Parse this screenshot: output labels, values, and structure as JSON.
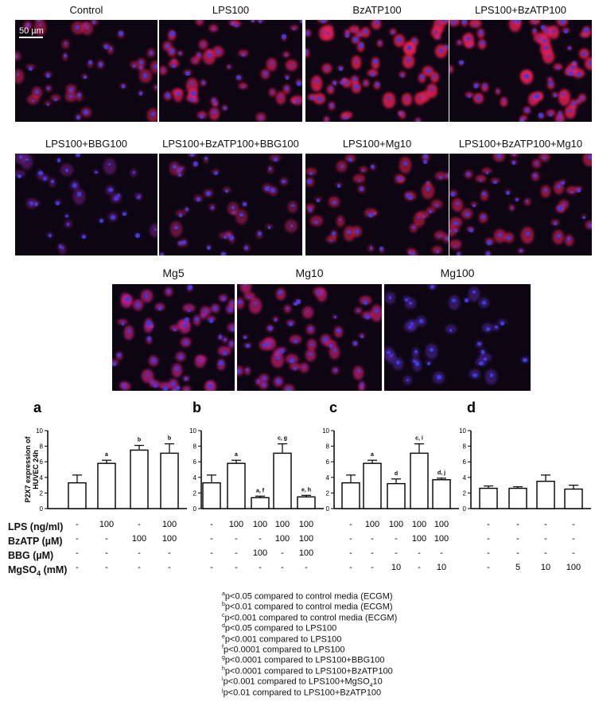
{
  "scale_bar": "50 µm",
  "micrographs": [
    {
      "label": "Control",
      "tint": "#d11f57",
      "density": 0.45
    },
    {
      "label": "LPS100",
      "tint": "#e01e5a",
      "density": 0.7
    },
    {
      "label": "BzATP100",
      "tint": "#e8204f",
      "density": 0.85
    },
    {
      "label": "LPS100+BzATP100",
      "tint": "#e81f56",
      "density": 0.85
    },
    {
      "label": "LPS100+BBG100",
      "tint": "#7a1f8a",
      "density": 0.35
    },
    {
      "label": "LPS100+BzATP100+BBG100",
      "tint": "#b0205e",
      "density": 0.4
    },
    {
      "label": "LPS100+Mg10",
      "tint": "#cc1e4a",
      "density": 0.55
    },
    {
      "label": "LPS100+BzATP100+Mg10",
      "tint": "#d01f55",
      "density": 0.6
    },
    {
      "label": "Mg5",
      "tint": "#c02081",
      "density": 0.7
    },
    {
      "label": "Mg10",
      "tint": "#c81e6d",
      "density": 0.65
    },
    {
      "label": "Mg100",
      "tint": "#5b2ab0",
      "density": 0.3
    }
  ],
  "chart_data": [
    {
      "type": "bar",
      "panel": "a",
      "ylabel": "P2X7 expression of HUVEC 24h",
      "ylim": [
        0,
        10
      ],
      "yticks": [
        "0",
        "2",
        "4",
        "6",
        "8",
        "10"
      ],
      "values": [
        3.3,
        5.8,
        7.5,
        7.1
      ],
      "errors": [
        1.0,
        0.4,
        0.6,
        1.2
      ],
      "sig": [
        "",
        "a",
        "b",
        "b"
      ],
      "conditions": {
        "lps": [
          "-",
          "100",
          "-",
          "100"
        ],
        "bzatp": [
          "-",
          "-",
          "100",
          "100"
        ],
        "bbg": [
          "-",
          "-",
          "-",
          "-"
        ],
        "mgso4": [
          "-",
          "-",
          "-",
          "-"
        ]
      }
    },
    {
      "type": "bar",
      "panel": "b",
      "ylim": [
        0,
        10
      ],
      "yticks": [
        "0",
        "2",
        "4",
        "6",
        "8",
        "10"
      ],
      "values": [
        3.3,
        5.8,
        1.4,
        7.1,
        1.5
      ],
      "errors": [
        1.0,
        0.4,
        0.2,
        1.2,
        0.2
      ],
      "sig": [
        "",
        "a",
        "a, f",
        "c, g",
        "e, h"
      ],
      "conditions": {
        "lps": [
          "-",
          "100",
          "100",
          "100",
          "100"
        ],
        "bzatp": [
          "-",
          "-",
          "-",
          "100",
          "100"
        ],
        "bbg": [
          "-",
          "-",
          "100",
          "-",
          "100"
        ],
        "mgso4": [
          "-",
          "-",
          "-",
          "-",
          "-"
        ]
      }
    },
    {
      "type": "bar",
      "panel": "c",
      "ylim": [
        0,
        10
      ],
      "yticks": [
        "0",
        "2",
        "4",
        "6",
        "8",
        "10"
      ],
      "values": [
        3.3,
        5.8,
        3.2,
        7.1,
        3.7
      ],
      "errors": [
        1.0,
        0.4,
        0.6,
        1.2,
        0.2
      ],
      "sig": [
        "",
        "a",
        "d",
        "c, i",
        "d, j"
      ],
      "conditions": {
        "lps": [
          "-",
          "100",
          "100",
          "100",
          "100"
        ],
        "bzatp": [
          "-",
          "-",
          "-",
          "100",
          "100"
        ],
        "bbg": [
          "-",
          "-",
          "-",
          "-",
          "-"
        ],
        "mgso4": [
          "-",
          "-",
          "10",
          "-",
          "10"
        ]
      }
    },
    {
      "type": "bar",
      "panel": "d",
      "ylim": [
        0,
        10
      ],
      "yticks": [
        "0",
        "2",
        "4",
        "6",
        "8",
        "10"
      ],
      "values": [
        2.6,
        2.6,
        3.5,
        2.5
      ],
      "errors": [
        0.3,
        0.2,
        0.8,
        0.5
      ],
      "sig": [
        "",
        "",
        "",
        ""
      ],
      "conditions": {
        "lps": [
          "-",
          "-",
          "-",
          "-"
        ],
        "bzatp": [
          "-",
          "-",
          "-",
          "-"
        ],
        "bbg": [
          "-",
          "-",
          "-",
          "-"
        ],
        "mgso4": [
          "-",
          "5",
          "10",
          "100"
        ]
      }
    }
  ],
  "row_labels": {
    "lps": "LPS (ng/ml)",
    "bzatp": "BzATP (µM)",
    "bbg": "BBG  (µM)",
    "mgso4_main": "MgSO",
    "mgso4_sub": "4",
    "mgso4_unit": " (mM)"
  },
  "footnotes": [
    {
      "sup": "a",
      "text": "p<0.05 compared to control media (ECGM)"
    },
    {
      "sup": "b",
      "text": "p<0.01 compared to control media (ECGM)"
    },
    {
      "sup": "c",
      "text": "p<0.001 compared to control media (ECGM)"
    },
    {
      "sup": "d",
      "text": "p<0.05 compared to LPS100"
    },
    {
      "sup": "e",
      "text": "p<0.001 compared to LPS100"
    },
    {
      "sup": "f",
      "text": "p<0.0001 compared to LPS100"
    },
    {
      "sup": "g",
      "text": "p<0.0001 compared to LPS100+BBG100"
    },
    {
      "sup": "h",
      "text": "p<0.0001 compared to LPS100+BzATP100"
    },
    {
      "sup": "i",
      "text": "p<0.001 compared to LPS100+MgSO",
      "sub": "4",
      "tail": "10"
    },
    {
      "sup": "j",
      "text": "p<0.01 compared to LPS100+BzATP100"
    }
  ]
}
